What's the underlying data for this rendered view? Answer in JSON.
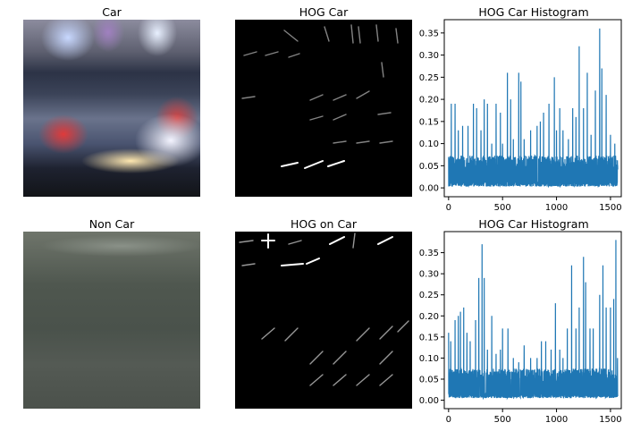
{
  "panels": {
    "car_image": {
      "title": "Car"
    },
    "hog_car": {
      "title": "HOG Car"
    },
    "noncar_image": {
      "title": "Non Car"
    },
    "hog_noncar": {
      "title": "HOG on Car"
    }
  },
  "colors": {
    "series": "#1f77b4",
    "axes": "#000000"
  },
  "chart_data": [
    {
      "type": "line",
      "title": "HOG Car Histogram",
      "xlabel": "",
      "ylabel": "",
      "xlim": [
        -40,
        1600
      ],
      "ylim": [
        -0.02,
        0.38
      ],
      "xticks": [
        "0",
        "500",
        "1000",
        "1500"
      ],
      "yticks": [
        "0.00",
        "0.05",
        "0.10",
        "0.15",
        "0.20",
        "0.25",
        "0.30",
        "0.35"
      ],
      "grid": false,
      "series": [
        {
          "n": 1568,
          "baseline": 0.003,
          "typical_max": 0.07,
          "peaks": [
            [
              0,
              0.07
            ],
            [
              25,
              0.19
            ],
            [
              60,
              0.19
            ],
            [
              90,
              0.13
            ],
            [
              130,
              0.14
            ],
            [
              180,
              0.14
            ],
            [
              230,
              0.19
            ],
            [
              260,
              0.18
            ],
            [
              300,
              0.13
            ],
            [
              330,
              0.2
            ],
            [
              360,
              0.19
            ],
            [
              400,
              0.1
            ],
            [
              440,
              0.19
            ],
            [
              480,
              0.17
            ],
            [
              500,
              0.1
            ],
            [
              545,
              0.26
            ],
            [
              575,
              0.2
            ],
            [
              600,
              0.11
            ],
            [
              650,
              0.26
            ],
            [
              670,
              0.24
            ],
            [
              700,
              0.11
            ],
            [
              760,
              0.13
            ],
            [
              820,
              0.14
            ],
            [
              850,
              0.15
            ],
            [
              880,
              0.17
            ],
            [
              930,
              0.19
            ],
            [
              980,
              0.25
            ],
            [
              1000,
              0.13
            ],
            [
              1030,
              0.18
            ],
            [
              1060,
              0.13
            ],
            [
              1110,
              0.11
            ],
            [
              1150,
              0.18
            ],
            [
              1180,
              0.16
            ],
            [
              1210,
              0.32
            ],
            [
              1250,
              0.18
            ],
            [
              1285,
              0.26
            ],
            [
              1320,
              0.12
            ],
            [
              1360,
              0.22
            ],
            [
              1400,
              0.36
            ],
            [
              1420,
              0.27
            ],
            [
              1460,
              0.21
            ],
            [
              1500,
              0.12
            ],
            [
              1540,
              0.1
            ],
            [
              1565,
              0.05
            ]
          ]
        }
      ]
    },
    {
      "type": "line",
      "title": "HOG Car Histogram",
      "xlabel": "",
      "ylabel": "",
      "xlim": [
        -40,
        1600
      ],
      "ylim": [
        -0.02,
        0.4
      ],
      "xticks": [
        "0",
        "500",
        "1000",
        "1500"
      ],
      "yticks": [
        "0.00",
        "0.05",
        "0.10",
        "0.15",
        "0.20",
        "0.25",
        "0.30",
        "0.35"
      ],
      "grid": false,
      "series": [
        {
          "n": 1568,
          "baseline": 0.005,
          "typical_max": 0.07,
          "peaks": [
            [
              0,
              0.16
            ],
            [
              20,
              0.14
            ],
            [
              60,
              0.19
            ],
            [
              90,
              0.2
            ],
            [
              110,
              0.21
            ],
            [
              140,
              0.22
            ],
            [
              170,
              0.16
            ],
            [
              200,
              0.14
            ],
            [
              250,
              0.19
            ],
            [
              280,
              0.29
            ],
            [
              310,
              0.37
            ],
            [
              330,
              0.29
            ],
            [
              360,
              0.12
            ],
            [
              400,
              0.2
            ],
            [
              440,
              0.11
            ],
            [
              480,
              0.12
            ],
            [
              500,
              0.17
            ],
            [
              550,
              0.17
            ],
            [
              600,
              0.1
            ],
            [
              650,
              0.09
            ],
            [
              700,
              0.13
            ],
            [
              760,
              0.1
            ],
            [
              820,
              0.1
            ],
            [
              860,
              0.14
            ],
            [
              900,
              0.14
            ],
            [
              950,
              0.12
            ],
            [
              990,
              0.23
            ],
            [
              1030,
              0.12
            ],
            [
              1060,
              0.1
            ],
            [
              1100,
              0.17
            ],
            [
              1140,
              0.32
            ],
            [
              1180,
              0.17
            ],
            [
              1210,
              0.22
            ],
            [
              1250,
              0.34
            ],
            [
              1270,
              0.28
            ],
            [
              1310,
              0.17
            ],
            [
              1340,
              0.17
            ],
            [
              1400,
              0.25
            ],
            [
              1430,
              0.32
            ],
            [
              1460,
              0.22
            ],
            [
              1500,
              0.22
            ],
            [
              1530,
              0.24
            ],
            [
              1550,
              0.38
            ],
            [
              1565,
              0.1
            ]
          ]
        }
      ]
    }
  ]
}
